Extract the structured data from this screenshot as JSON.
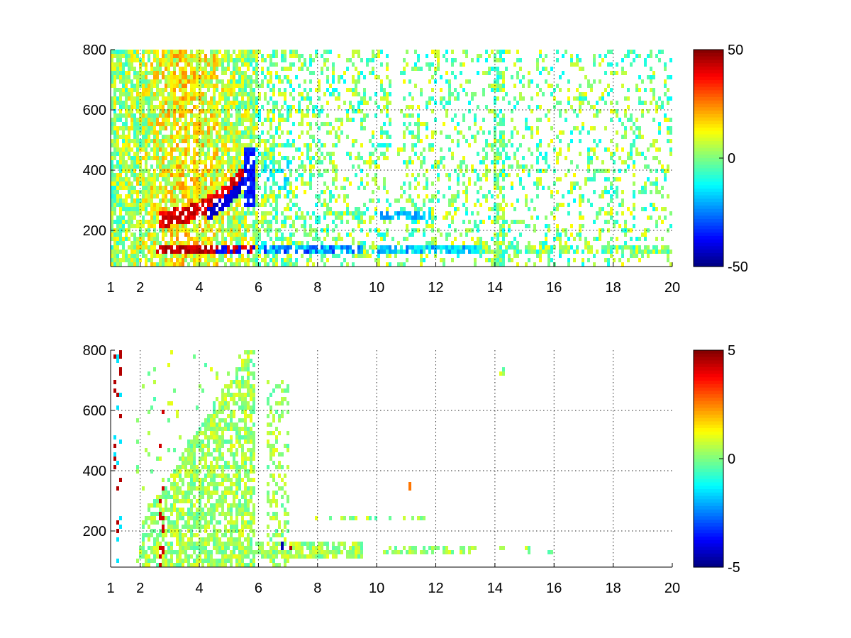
{
  "chart_data": [
    {
      "type": "heatmap",
      "title": "",
      "xlabel": "",
      "ylabel": "",
      "xlim": [
        1,
        20
      ],
      "ylim": [
        80,
        800
      ],
      "xticks": [
        "1",
        "2",
        "4",
        "6",
        "8",
        "10",
        "12",
        "14",
        "16",
        "18",
        "20"
      ],
      "yticks": [
        "200",
        "400",
        "600",
        "800"
      ],
      "grid": true,
      "colormap": "jet",
      "clim": [
        -50,
        50
      ],
      "colorbar": {
        "ticks": [
          "50",
          "0",
          "-50"
        ],
        "placement": "right"
      },
      "features": [
        {
          "desc": "strong positive band",
          "x": [
            2.5,
            5.8
          ],
          "y": [
            120,
            150
          ],
          "level": 40
        },
        {
          "desc": "strong negative band",
          "x": [
            4.2,
            9.5
          ],
          "y": [
            120,
            150
          ],
          "level": -40
        },
        {
          "desc": "positive ridge",
          "x": [
            2.6,
            5.8
          ],
          "y": [
            250,
            420
          ],
          "level": 38
        },
        {
          "desc": "negative ridge",
          "x": [
            4.3,
            5.9
          ],
          "y": [
            230,
            480
          ],
          "level": -40
        },
        {
          "desc": "negative band",
          "x": [
            10.0,
            13.5
          ],
          "y": [
            120,
            150
          ],
          "level": -30
        },
        {
          "desc": "negative band",
          "x": [
            10.0,
            11.8
          ],
          "y": [
            240,
            255
          ],
          "level": -25
        }
      ]
    },
    {
      "type": "heatmap",
      "title": "",
      "xlabel": "",
      "ylabel": "",
      "xlim": [
        1,
        20
      ],
      "ylim": [
        80,
        800
      ],
      "xticks": [
        "1",
        "2",
        "4",
        "6",
        "8",
        "10",
        "12",
        "14",
        "16",
        "18",
        "20"
      ],
      "yticks": [
        "200",
        "400",
        "600",
        "800"
      ],
      "grid": true,
      "colormap": "jet",
      "clim": [
        -5,
        5
      ],
      "colorbar": {
        "ticks": [
          "5",
          "0",
          "-5"
        ],
        "placement": "right"
      },
      "features": [
        {
          "desc": "near-zero band",
          "x": [
            2.3,
            9.5
          ],
          "y": [
            110,
            170
          ],
          "level": 0
        },
        {
          "desc": "near-zero band",
          "x": [
            10.0,
            13.5
          ],
          "y": [
            120,
            150
          ],
          "level": 0
        },
        {
          "desc": "outlier spot",
          "x": [
            11.05,
            11.2
          ],
          "y": [
            340,
            355
          ],
          "level": 2.5
        }
      ]
    }
  ]
}
